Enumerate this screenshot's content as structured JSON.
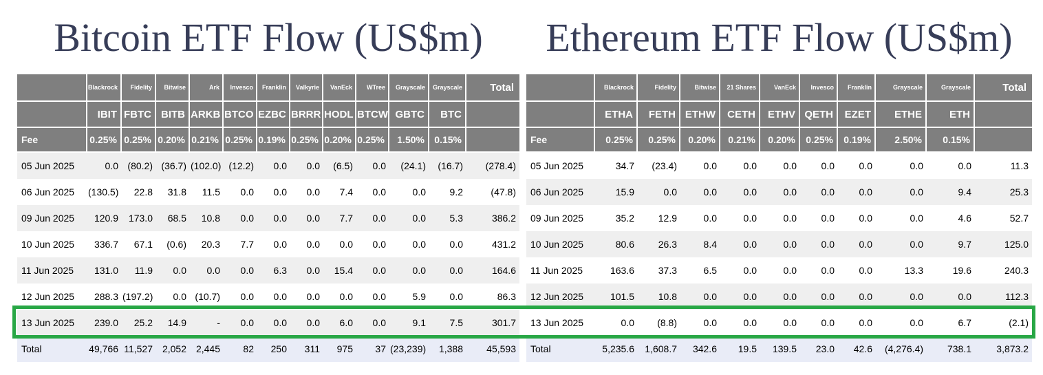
{
  "colors": {
    "page-bg": "#ffffff",
    "title-color": "#373d58",
    "header-bg": "#7f7f7f",
    "header-text": "#ffffff",
    "row-shaded": "#efefef",
    "total-row-bg": "#e9ecf7",
    "negative": "#ff0000",
    "text-color": "#000000",
    "highlight": "#28a745"
  },
  "tables": {
    "bitcoin": {
      "title": "Bitcoin ETF Flow (US$m)",
      "fee_label": "Fee",
      "total_header": "Total",
      "total_label": "Total",
      "columns": [
        {
          "issuer": "Blackrock",
          "ticker": "IBIT",
          "fee": "0.25%"
        },
        {
          "issuer": "Fidelity",
          "ticker": "FBTC",
          "fee": "0.25%"
        },
        {
          "issuer": "Bitwise",
          "ticker": "BITB",
          "fee": "0.20%"
        },
        {
          "issuer": "Ark",
          "ticker": "ARKB",
          "fee": "0.21%"
        },
        {
          "issuer": "Invesco",
          "ticker": "BTCO",
          "fee": "0.25%"
        },
        {
          "issuer": "Franklin",
          "ticker": "EZBC",
          "fee": "0.19%"
        },
        {
          "issuer": "Valkyrie",
          "ticker": "BRRR",
          "fee": "0.25%"
        },
        {
          "issuer": "VanEck",
          "ticker": "HODL",
          "fee": "0.20%"
        },
        {
          "issuer": "WTree",
          "ticker": "BTCW",
          "fee": "0.25%"
        },
        {
          "issuer": "Grayscale",
          "ticker": "GBTC",
          "fee": "1.50%"
        },
        {
          "issuer": "Grayscale",
          "ticker": "BTC",
          "fee": "0.15%"
        }
      ],
      "rows": [
        {
          "date": "05 Jun 2025",
          "shaded": true,
          "highlighted": false,
          "values": [
            "0.0",
            "(80.2)",
            "(36.7)",
            "(102.0)",
            "(12.2)",
            "0.0",
            "0.0",
            "(6.5)",
            "0.0",
            "(24.1)",
            "(16.7)",
            "(278.4)"
          ]
        },
        {
          "date": "06 Jun 2025",
          "shaded": false,
          "highlighted": false,
          "values": [
            "(130.5)",
            "22.8",
            "31.8",
            "11.5",
            "0.0",
            "0.0",
            "0.0",
            "7.4",
            "0.0",
            "0.0",
            "9.2",
            "(47.8)"
          ]
        },
        {
          "date": "09 Jun 2025",
          "shaded": true,
          "highlighted": false,
          "values": [
            "120.9",
            "173.0",
            "68.5",
            "10.8",
            "0.0",
            "0.0",
            "0.0",
            "7.7",
            "0.0",
            "0.0",
            "5.3",
            "386.2"
          ]
        },
        {
          "date": "10 Jun 2025",
          "shaded": false,
          "highlighted": false,
          "values": [
            "336.7",
            "67.1",
            "(0.6)",
            "20.3",
            "7.7",
            "0.0",
            "0.0",
            "0.0",
            "0.0",
            "0.0",
            "0.0",
            "431.2"
          ]
        },
        {
          "date": "11 Jun 2025",
          "shaded": true,
          "highlighted": false,
          "values": [
            "131.0",
            "11.9",
            "0.0",
            "0.0",
            "0.0",
            "6.3",
            "0.0",
            "15.4",
            "0.0",
            "0.0",
            "0.0",
            "164.6"
          ]
        },
        {
          "date": "12 Jun 2025",
          "shaded": false,
          "highlighted": false,
          "values": [
            "288.3",
            "(197.2)",
            "0.0",
            "(10.7)",
            "0.0",
            "0.0",
            "0.0",
            "0.0",
            "0.0",
            "5.9",
            "0.0",
            "86.3"
          ]
        },
        {
          "date": "13 Jun 2025",
          "shaded": true,
          "highlighted": true,
          "values": [
            "239.0",
            "25.2",
            "14.9",
            "-",
            "0.0",
            "0.0",
            "0.0",
            "6.0",
            "0.0",
            "9.1",
            "7.5",
            "301.7"
          ]
        }
      ],
      "totals": [
        "49,766",
        "11,527",
        "2,052",
        "2,445",
        "82",
        "250",
        "311",
        "975",
        "37",
        "(23,239)",
        "1,388",
        "45,593"
      ]
    },
    "ethereum": {
      "title": "Ethereum ETF Flow (US$m)",
      "fee_label": "Fee",
      "total_header": "Total",
      "total_label": "Total",
      "columns": [
        {
          "issuer": "Blackrock",
          "ticker": "ETHA",
          "fee": "0.25%"
        },
        {
          "issuer": "Fidelity",
          "ticker": "FETH",
          "fee": "0.25%"
        },
        {
          "issuer": "Bitwise",
          "ticker": "ETHW",
          "fee": "0.20%"
        },
        {
          "issuer": "21 Shares",
          "ticker": "CETH",
          "fee": "0.21%"
        },
        {
          "issuer": "VanEck",
          "ticker": "ETHV",
          "fee": "0.20%"
        },
        {
          "issuer": "Invesco",
          "ticker": "QETH",
          "fee": "0.25%"
        },
        {
          "issuer": "Franklin",
          "ticker": "EZET",
          "fee": "0.19%"
        },
        {
          "issuer": "Grayscale",
          "ticker": "ETHE",
          "fee": "2.50%"
        },
        {
          "issuer": "Grayscale",
          "ticker": "ETH",
          "fee": "0.15%"
        }
      ],
      "rows": [
        {
          "date": "05 Jun 2025",
          "shaded": false,
          "highlighted": false,
          "values": [
            "34.7",
            "(23.4)",
            "0.0",
            "0.0",
            "0.0",
            "0.0",
            "0.0",
            "0.0",
            "0.0",
            "11.3"
          ]
        },
        {
          "date": "06 Jun 2025",
          "shaded": true,
          "highlighted": false,
          "values": [
            "15.9",
            "0.0",
            "0.0",
            "0.0",
            "0.0",
            "0.0",
            "0.0",
            "0.0",
            "9.4",
            "25.3"
          ]
        },
        {
          "date": "09 Jun 2025",
          "shaded": false,
          "highlighted": false,
          "values": [
            "35.2",
            "12.9",
            "0.0",
            "0.0",
            "0.0",
            "0.0",
            "0.0",
            "0.0",
            "4.6",
            "52.7"
          ]
        },
        {
          "date": "10 Jun 2025",
          "shaded": true,
          "highlighted": false,
          "values": [
            "80.6",
            "26.3",
            "8.4",
            "0.0",
            "0.0",
            "0.0",
            "0.0",
            "0.0",
            "9.7",
            "125.0"
          ]
        },
        {
          "date": "11 Jun 2025",
          "shaded": false,
          "highlighted": false,
          "values": [
            "163.6",
            "37.3",
            "6.5",
            "0.0",
            "0.0",
            "0.0",
            "0.0",
            "13.3",
            "19.6",
            "240.3"
          ]
        },
        {
          "date": "12 Jun 2025",
          "shaded": true,
          "highlighted": false,
          "values": [
            "101.5",
            "10.8",
            "0.0",
            "0.0",
            "0.0",
            "0.0",
            "0.0",
            "0.0",
            "0.0",
            "112.3"
          ]
        },
        {
          "date": "13 Jun 2025",
          "shaded": false,
          "highlighted": true,
          "values": [
            "0.0",
            "(8.8)",
            "0.0",
            "0.0",
            "0.0",
            "0.0",
            "0.0",
            "0.0",
            "6.7",
            "(2.1)"
          ]
        }
      ],
      "totals": [
        "5,235.6",
        "1,608.7",
        "342.6",
        "19.5",
        "139.5",
        "23.0",
        "42.6",
        "(4,276.4)",
        "738.1",
        "3,873.2"
      ]
    }
  }
}
